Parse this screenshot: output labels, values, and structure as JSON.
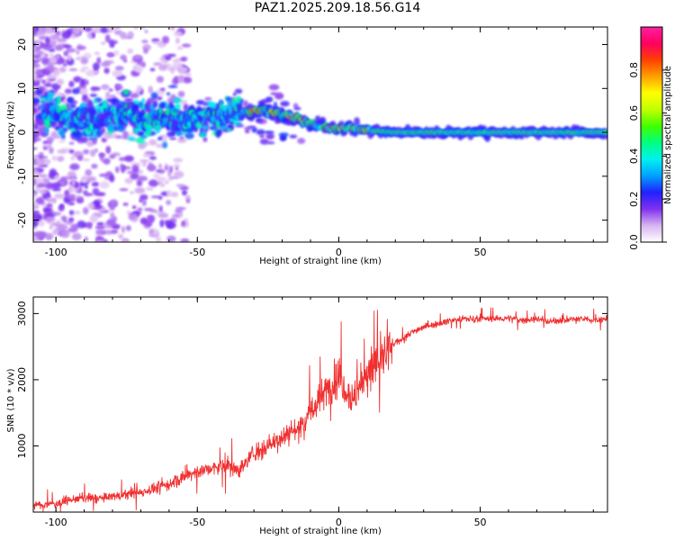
{
  "title": "PAZ1.2025.209.18.56.G14",
  "colors": {
    "snr_line": "#f03030",
    "axis": "#000000",
    "background": "#ffffff"
  },
  "chart_data": [
    {
      "type": "heatmap",
      "xlabel": "Height of straight line (km)",
      "ylabel": "Frequency (Hz)",
      "xlim": [
        -108,
        95
      ],
      "ylim": [
        -25,
        24
      ],
      "xticks": [
        -100,
        -50,
        0,
        50
      ],
      "yticks": [
        20,
        10,
        0,
        -10,
        -20
      ],
      "colorbar": {
        "label": "Normalized spectral amplitude",
        "range": [
          0,
          1
        ],
        "ticks": [
          "0.0",
          "0.2",
          "0.4",
          "0.6",
          "0.8"
        ],
        "colors": [
          "#ffffff",
          "#d8b4f0",
          "#8030f0",
          "#2020ff",
          "#00a0ff",
          "#00f0f0",
          "#00ff80",
          "#40ff00",
          "#c0ff00",
          "#ffff00",
          "#ffa000",
          "#ff4000",
          "#ff0060",
          "#ff20a0"
        ]
      },
      "ridge": {
        "description": "dominant frequency ridge (Hz) vs height (km)",
        "x": [
          -100,
          -90,
          -80,
          -70,
          -60,
          -50,
          -40,
          -30,
          -25,
          -20,
          -15,
          -10,
          -5,
          0,
          5,
          10,
          20,
          40,
          60,
          80,
          95
        ],
        "y": [
          4,
          3,
          4,
          3,
          3,
          3,
          4,
          5,
          5,
          4,
          3,
          2,
          1,
          1,
          1,
          0.5,
          0,
          0,
          0,
          0,
          0
        ]
      }
    },
    {
      "type": "line",
      "xlabel": "Height of straight line (km)",
      "ylabel": "SNR (10 * v/v)",
      "xlim": [
        -108,
        95
      ],
      "ylim": [
        0,
        3250
      ],
      "xticks": [
        -100,
        -50,
        0,
        50
      ],
      "yticks": [
        1000,
        2000,
        3000
      ],
      "series": [
        {
          "x": [
            -108,
            -100,
            -95,
            -90,
            -85,
            -80,
            -75,
            -70,
            -65,
            -60,
            -55,
            -50,
            -45,
            -40,
            -35,
            -30,
            -25,
            -20,
            -15,
            -10,
            -5,
            0,
            5,
            10,
            15,
            20,
            25,
            30,
            35,
            40,
            45,
            50,
            55,
            60,
            65,
            70,
            75,
            80,
            85,
            90,
            95
          ],
          "y": [
            100,
            130,
            180,
            220,
            200,
            240,
            260,
            300,
            360,
            420,
            520,
            620,
            650,
            700,
            640,
            900,
            1000,
            1150,
            1250,
            1500,
            1800,
            2050,
            1700,
            2100,
            2300,
            2550,
            2700,
            2800,
            2850,
            2900,
            2920,
            2920,
            2920,
            2930,
            2900,
            2920,
            2880,
            2900,
            2920,
            2900,
            2920
          ]
        }
      ]
    }
  ]
}
